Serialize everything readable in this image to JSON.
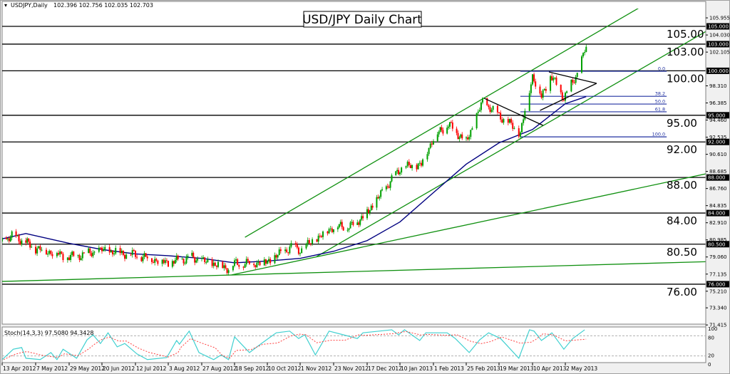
{
  "header": {
    "symbol": "USDJPY,Daily",
    "ohlc": "102.396 102.756 102.035 102.703"
  },
  "chart_data": {
    "type": "candlestick",
    "title": "USD/JPY Daily Chart",
    "ylim": [
      71.0,
      106.5
    ],
    "y_tick_labels": [
      "105.955",
      "104.030",
      "102.105",
      "98.310",
      "96.385",
      "94.460",
      "92.535",
      "90.610",
      "88.685",
      "86.760",
      "84.835",
      "82.910",
      "80.985",
      "79.060",
      "77.135",
      "75.210",
      "73.340",
      "71.415"
    ],
    "x_tick_labels": [
      "13 Apr 2012",
      "7 May 2012",
      "29 May 2012",
      "20 Jun 2012",
      "12 Jul 2012",
      "3 Aug 2012",
      "27 Aug 2012",
      "18 Sep 2012",
      "10 Oct 2012",
      "1 Nov 2012",
      "23 Nov 2012",
      "17 Dec 2012",
      "10 Jan 2013",
      "1 Feb 2013",
      "25 Feb 2013",
      "19 Mar 2013",
      "10 Apr 2013",
      "2 May 2013"
    ],
    "current_price": "102.703",
    "colors": {
      "bull": "#00a000",
      "bear": "#ff0000",
      "ma": "#000080",
      "trend": "#109010",
      "level": "#000000",
      "fib": "#2030a0",
      "stoch_k": "#40d0d0",
      "stoch_d": "#ff4040"
    },
    "price_path": [
      [
        "2012-04-13",
        80.8
      ],
      [
        "2012-04-21",
        81.5
      ],
      [
        "2012-05-07",
        80.0
      ],
      [
        "2012-05-20",
        79.5
      ],
      [
        "2012-05-29",
        79.0
      ],
      [
        "2012-06-20",
        79.8
      ],
      [
        "2012-07-12",
        79.3
      ],
      [
        "2012-08-03",
        78.4
      ],
      [
        "2012-08-20",
        79.0
      ],
      [
        "2012-08-27",
        78.6
      ],
      [
        "2012-09-14",
        77.8
      ],
      [
        "2012-09-18",
        78.3
      ],
      [
        "2012-10-10",
        78.5
      ],
      [
        "2012-10-26",
        80.2
      ],
      [
        "2012-11-01",
        79.8
      ],
      [
        "2012-11-23",
        82.5
      ],
      [
        "2012-12-05",
        82.5
      ],
      [
        "2012-12-17",
        84.0
      ],
      [
        "2013-01-10",
        89.0
      ],
      [
        "2013-01-24",
        89.5
      ],
      [
        "2013-02-01",
        92.5
      ],
      [
        "2013-02-12",
        94.0
      ],
      [
        "2013-02-25",
        92.0
      ],
      [
        "2013-03-08",
        96.5
      ],
      [
        "2013-03-19",
        95.0
      ],
      [
        "2013-04-02",
        93.0
      ],
      [
        "2013-04-10",
        99.5
      ],
      [
        "2013-04-16",
        97.0
      ],
      [
        "2013-04-22",
        99.5
      ],
      [
        "2013-05-01",
        97.0
      ],
      [
        "2013-05-09",
        99.3
      ],
      [
        "2013-05-16",
        102.7
      ]
    ],
    "moving_average": [
      [
        "2012-04-13",
        81.1
      ],
      [
        "2012-04-30",
        81.7
      ],
      [
        "2012-05-29",
        80.6
      ],
      [
        "2012-06-20",
        79.9
      ],
      [
        "2012-07-12",
        79.4
      ],
      [
        "2012-08-03",
        79.2
      ],
      [
        "2012-08-27",
        78.9
      ],
      [
        "2012-09-18",
        78.4
      ],
      [
        "2012-10-10",
        78.6
      ],
      [
        "2012-11-01",
        78.9
      ],
      [
        "2012-11-23",
        79.7
      ],
      [
        "2012-12-17",
        80.9
      ],
      [
        "2013-01-02",
        82.3
      ],
      [
        "2013-01-10",
        83.0
      ],
      [
        "2013-02-01",
        86.3
      ],
      [
        "2013-02-25",
        89.5
      ],
      [
        "2013-03-19",
        91.9
      ],
      [
        "2013-04-10",
        93.4
      ],
      [
        "2013-05-02",
        96.3
      ],
      [
        "2013-05-16",
        97.1
      ]
    ],
    "horizontal_levels": [
      {
        "price": 105.0,
        "label": "105.00",
        "axis_label": "105.000"
      },
      {
        "price": 103.0,
        "label": "103.00",
        "axis_label": "103.000"
      },
      {
        "price": 100.0,
        "label": "100.00",
        "axis_label": "100.000"
      },
      {
        "price": 95.0,
        "label": "95.00",
        "axis_label": "95.000"
      },
      {
        "price": 92.0,
        "label": "92.00",
        "axis_label": "92.000"
      },
      {
        "price": 88.0,
        "label": "88.00",
        "axis_label": "88.000"
      },
      {
        "price": 84.0,
        "label": "84.00",
        "axis_label": "84.000"
      },
      {
        "price": 80.5,
        "label": "80.50",
        "axis_label": "80.500"
      },
      {
        "price": 76.0,
        "label": "76.00",
        "axis_label": "76.000"
      }
    ],
    "trendlines": [
      {
        "name": "upper-channel",
        "from": [
          "2012-09-25",
          81.28
        ],
        "to": [
          "2013-06-27",
          107.72
        ]
      },
      {
        "name": "middle-channel",
        "from": [
          "2012-11-12",
          79.12
        ],
        "to": [
          "2013-08-11",
          105.08
        ]
      },
      {
        "name": "lower-trendline",
        "from": [
          "2012-09-16",
          77.04
        ],
        "to": [
          "2013-08-11",
          88.65
        ]
      },
      {
        "name": "base-trendline",
        "from": [
          "2012-04-13",
          76.31
        ],
        "to": [
          "2013-08-11",
          78.56
        ]
      }
    ],
    "triangle_lines": [
      {
        "from": [
          "2013-03-09",
          96.91
        ],
        "to": [
          "2013-04-17",
          93.86
        ]
      },
      {
        "from": [
          "2013-04-21",
          99.87
        ],
        "to": [
          "2013-05-23",
          98.59
        ]
      },
      {
        "from": [
          "2013-04-15",
          95.54
        ],
        "to": [
          "2013-05-23",
          98.59
        ]
      }
    ],
    "fibonacci": {
      "from_date": "2013-04-02",
      "to_date": "2013-07-09",
      "high": 99.95,
      "low": 92.57,
      "levels": [
        {
          "ratio": 0.0,
          "label": "0.0"
        },
        {
          "ratio": 0.382,
          "label": "38.2"
        },
        {
          "ratio": 0.5,
          "label": "50.0"
        },
        {
          "ratio": 0.618,
          "label": "61.8"
        },
        {
          "ratio": 1.0,
          "label": "100.0"
        }
      ]
    },
    "stochastic": {
      "label": "Stoch(14,3,3) 97.5080 94.3428",
      "levels": [
        "100",
        "80",
        "20",
        "0"
      ],
      "k": [
        [
          "2012-04-13",
          9
        ],
        [
          "2012-04-21",
          40
        ],
        [
          "2012-04-27",
          45
        ],
        [
          "2012-04-30",
          13
        ],
        [
          "2012-05-10",
          9
        ],
        [
          "2012-05-17",
          30
        ],
        [
          "2012-05-21",
          9
        ],
        [
          "2012-05-25",
          40
        ],
        [
          "2012-06-03",
          13
        ],
        [
          "2012-06-10",
          68
        ],
        [
          "2012-06-14",
          83
        ],
        [
          "2012-06-19",
          57
        ],
        [
          "2012-06-24",
          89
        ],
        [
          "2012-06-30",
          47
        ],
        [
          "2012-07-05",
          57
        ],
        [
          "2012-07-13",
          26
        ],
        [
          "2012-07-20",
          9
        ],
        [
          "2012-08-02",
          15
        ],
        [
          "2012-08-09",
          66
        ],
        [
          "2012-08-11",
          55
        ],
        [
          "2012-08-18",
          94
        ],
        [
          "2012-08-25",
          30
        ],
        [
          "2012-09-04",
          9
        ],
        [
          "2012-09-09",
          23
        ],
        [
          "2012-09-14",
          9
        ],
        [
          "2012-09-18",
          77
        ],
        [
          "2012-09-28",
          30
        ],
        [
          "2012-10-06",
          57
        ],
        [
          "2012-10-16",
          89
        ],
        [
          "2012-10-25",
          94
        ],
        [
          "2012-10-31",
          72
        ],
        [
          "2012-11-04",
          83
        ],
        [
          "2012-11-11",
          23
        ],
        [
          "2012-11-20",
          94
        ],
        [
          "2012-11-30",
          83
        ],
        [
          "2012-12-10",
          72
        ],
        [
          "2012-12-14",
          89
        ],
        [
          "2013-01-04",
          98
        ],
        [
          "2013-01-09",
          83
        ],
        [
          "2013-01-13",
          98
        ],
        [
          "2013-01-23",
          66
        ],
        [
          "2013-01-27",
          89
        ],
        [
          "2013-02-11",
          89
        ],
        [
          "2013-02-17",
          72
        ],
        [
          "2013-02-27",
          30
        ],
        [
          "2013-03-06",
          68
        ],
        [
          "2013-03-12",
          89
        ],
        [
          "2013-03-20",
          72
        ],
        [
          "2013-04-01",
          13
        ],
        [
          "2013-04-08",
          98
        ],
        [
          "2013-04-11",
          94
        ],
        [
          "2013-04-16",
          66
        ],
        [
          "2013-04-23",
          89
        ],
        [
          "2013-05-01",
          40
        ],
        [
          "2013-05-07",
          72
        ],
        [
          "2013-05-15",
          98
        ]
      ]
    }
  }
}
